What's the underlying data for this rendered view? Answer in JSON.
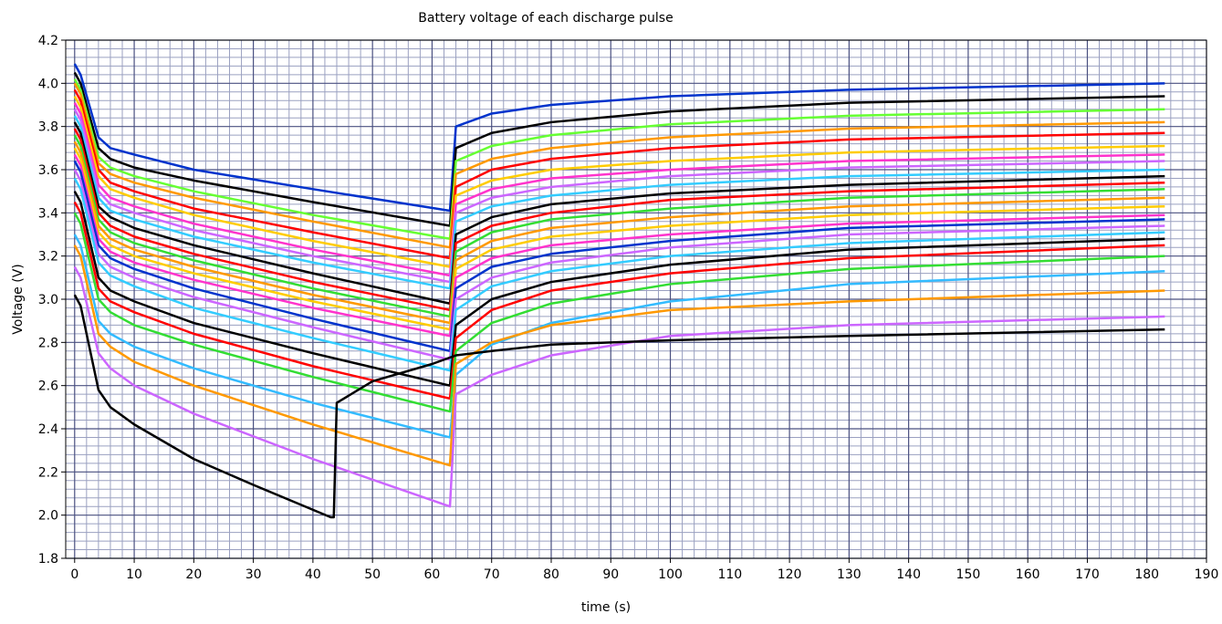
{
  "chart_data": {
    "type": "line",
    "title": "Battery voltage of each discharge pulse",
    "xlabel": "time (s)",
    "ylabel": "Voltage (V)",
    "x": [
      0,
      1,
      4,
      6,
      10,
      20,
      40,
      63,
      64,
      70,
      80,
      100,
      130,
      183
    ],
    "series": [
      {
        "color": "#0033cc",
        "values": [
          4.09,
          4.04,
          3.75,
          3.7,
          3.67,
          3.6,
          3.51,
          3.41,
          3.8,
          3.86,
          3.9,
          3.94,
          3.97,
          4.0
        ]
      },
      {
        "color": "#000000",
        "values": [
          4.05,
          4.0,
          3.7,
          3.65,
          3.61,
          3.55,
          3.45,
          3.34,
          3.7,
          3.77,
          3.82,
          3.87,
          3.91,
          3.94
        ]
      },
      {
        "color": "#66ff33",
        "values": [
          4.02,
          3.97,
          3.66,
          3.61,
          3.57,
          3.5,
          3.39,
          3.28,
          3.64,
          3.71,
          3.76,
          3.81,
          3.85,
          3.88
        ]
      },
      {
        "color": "#ff9900",
        "values": [
          4.0,
          3.95,
          3.63,
          3.58,
          3.54,
          3.47,
          3.36,
          3.24,
          3.58,
          3.65,
          3.7,
          3.75,
          3.79,
          3.82
        ]
      },
      {
        "color": "#ff0000",
        "values": [
          3.97,
          3.92,
          3.6,
          3.54,
          3.5,
          3.42,
          3.31,
          3.19,
          3.52,
          3.6,
          3.65,
          3.7,
          3.74,
          3.77
        ]
      },
      {
        "color": "#ffcc00",
        "values": [
          3.94,
          3.89,
          3.57,
          3.51,
          3.47,
          3.39,
          3.27,
          3.15,
          3.48,
          3.55,
          3.6,
          3.64,
          3.68,
          3.71
        ]
      },
      {
        "color": "#ff33cc",
        "values": [
          3.91,
          3.86,
          3.53,
          3.47,
          3.43,
          3.35,
          3.23,
          3.11,
          3.44,
          3.51,
          3.56,
          3.6,
          3.64,
          3.67
        ]
      },
      {
        "color": "#cc66ff",
        "values": [
          3.88,
          3.83,
          3.5,
          3.44,
          3.4,
          3.32,
          3.2,
          3.08,
          3.4,
          3.47,
          3.52,
          3.57,
          3.61,
          3.64
        ]
      },
      {
        "color": "#33ccff",
        "values": [
          3.85,
          3.8,
          3.47,
          3.41,
          3.37,
          3.29,
          3.17,
          3.05,
          3.36,
          3.43,
          3.48,
          3.53,
          3.57,
          3.6
        ]
      },
      {
        "color": "#000000",
        "values": [
          3.82,
          3.77,
          3.43,
          3.38,
          3.33,
          3.25,
          3.12,
          2.98,
          3.3,
          3.38,
          3.44,
          3.49,
          3.53,
          3.57
        ]
      },
      {
        "color": "#ff0000",
        "values": [
          3.79,
          3.74,
          3.4,
          3.34,
          3.29,
          3.21,
          3.08,
          2.95,
          3.26,
          3.34,
          3.4,
          3.46,
          3.5,
          3.54
        ]
      },
      {
        "color": "#33dd33",
        "values": [
          3.76,
          3.71,
          3.37,
          3.31,
          3.26,
          3.18,
          3.05,
          2.92,
          3.22,
          3.31,
          3.37,
          3.42,
          3.47,
          3.51
        ]
      },
      {
        "color": "#ff9900",
        "values": [
          3.73,
          3.68,
          3.34,
          3.28,
          3.23,
          3.15,
          3.02,
          2.89,
          3.18,
          3.27,
          3.33,
          3.38,
          3.43,
          3.47
        ]
      },
      {
        "color": "#ffcc00",
        "values": [
          3.7,
          3.65,
          3.31,
          3.25,
          3.2,
          3.12,
          2.99,
          2.86,
          3.14,
          3.23,
          3.29,
          3.34,
          3.39,
          3.43
        ]
      },
      {
        "color": "#ff33cc",
        "values": [
          3.67,
          3.62,
          3.28,
          3.22,
          3.17,
          3.09,
          2.96,
          2.83,
          3.1,
          3.19,
          3.25,
          3.3,
          3.35,
          3.39
        ]
      },
      {
        "color": "#0033cc",
        "values": [
          3.64,
          3.59,
          3.25,
          3.19,
          3.14,
          3.05,
          2.91,
          2.76,
          3.05,
          3.15,
          3.21,
          3.27,
          3.33,
          3.37
        ]
      },
      {
        "color": "#cc66ff",
        "values": [
          3.6,
          3.55,
          3.21,
          3.15,
          3.1,
          3.01,
          2.87,
          2.72,
          3.0,
          3.1,
          3.17,
          3.24,
          3.3,
          3.34
        ]
      },
      {
        "color": "#33ccff",
        "values": [
          3.56,
          3.51,
          3.17,
          3.11,
          3.06,
          2.96,
          2.82,
          2.67,
          2.95,
          3.06,
          3.13,
          3.2,
          3.26,
          3.31
        ]
      },
      {
        "color": "#000000",
        "values": [
          3.5,
          3.45,
          3.1,
          3.04,
          2.99,
          2.89,
          2.75,
          2.6,
          2.88,
          3.0,
          3.08,
          3.16,
          3.23,
          3.28
        ]
      },
      {
        "color": "#ff0000",
        "values": [
          3.45,
          3.4,
          3.05,
          2.99,
          2.94,
          2.84,
          2.69,
          2.54,
          2.82,
          2.95,
          3.04,
          3.12,
          3.19,
          3.25
        ]
      },
      {
        "color": "#33dd33",
        "values": [
          3.4,
          3.35,
          3.0,
          2.94,
          2.88,
          2.79,
          2.64,
          2.48,
          2.76,
          2.89,
          2.98,
          3.07,
          3.14,
          3.2
        ]
      },
      {
        "color": "#33bbff",
        "values": [
          3.3,
          3.25,
          2.9,
          2.84,
          2.78,
          2.68,
          2.52,
          2.36,
          2.65,
          2.79,
          2.89,
          2.99,
          3.07,
          3.13
        ]
      },
      {
        "color": "#ff9900",
        "values": [
          3.25,
          3.2,
          2.84,
          2.78,
          2.71,
          2.6,
          2.42,
          2.23,
          2.7,
          2.8,
          2.88,
          2.95,
          2.99,
          3.04
        ]
      },
      {
        "color": "#cc66ff",
        "values": [
          3.15,
          3.1,
          2.75,
          2.68,
          2.6,
          2.47,
          2.26,
          2.04,
          2.56,
          2.65,
          2.74,
          2.83,
          2.88,
          2.92
        ]
      },
      {
        "color": "#000000",
        "x": [
          0,
          1,
          4,
          6,
          10,
          20,
          30,
          43,
          43.5,
          44,
          50,
          60,
          64,
          70,
          80,
          100,
          130,
          183
        ],
        "values": [
          3.02,
          2.97,
          2.58,
          2.5,
          2.42,
          2.26,
          2.14,
          1.99,
          1.99,
          2.52,
          2.62,
          2.7,
          2.74,
          2.76,
          2.79,
          2.81,
          2.83,
          2.86
        ]
      }
    ],
    "xlim": [
      -1.5,
      190
    ],
    "ylim": [
      1.8,
      4.2
    ],
    "xticks": [
      0,
      10,
      20,
      30,
      40,
      50,
      60,
      70,
      80,
      90,
      100,
      110,
      120,
      130,
      140,
      150,
      160,
      170,
      180,
      190
    ],
    "yticks": [
      1.8,
      {
        "value": 2,
        "label": "2.0"
      },
      2.2,
      2.4,
      2.6,
      2.8,
      {
        "value": 3,
        "label": "3.0"
      },
      3.2,
      3.4,
      3.6,
      3.8,
      {
        "value": 4,
        "label": "4.0"
      },
      4.2
    ],
    "grid": true
  }
}
